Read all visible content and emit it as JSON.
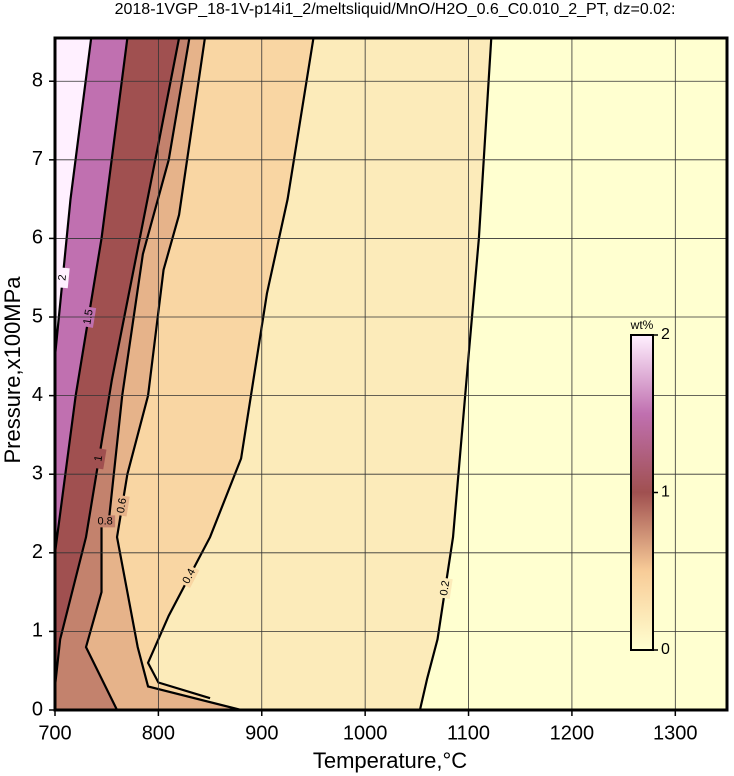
{
  "chart_data": {
    "type": "contour",
    "title": "2018-1VGP_18-1V-p14i1_2/meltsliquid/MnO/H2O_0.6_C0.010_2_PT, dz=0.02:",
    "xlabel": "Temperature,°C",
    "ylabel": "Pressure,x100MPa",
    "xlim": [
      700,
      1350
    ],
    "ylim": [
      0,
      8.55
    ],
    "xticks": [
      700,
      800,
      900,
      1000,
      1100,
      1200,
      1300
    ],
    "yticks": [
      0,
      1,
      2,
      3,
      4,
      5,
      6,
      7,
      8
    ],
    "grid": true,
    "contours": [
      {
        "level": 0.2,
        "x": [
          1053,
          1060,
          1070,
          1085,
          1100,
          1110,
          1122
        ],
        "y": [
          0,
          0.4,
          0.9,
          2.2,
          4.5,
          6,
          8.55
        ]
      },
      {
        "level": 0.4,
        "x": [
          850,
          800,
          790,
          810,
          850,
          880,
          905,
          925,
          950
        ],
        "y": [
          0.15,
          0.35,
          0.6,
          1.2,
          2.2,
          3.2,
          5.3,
          6.5,
          8.55
        ]
      },
      {
        "level": 0.6,
        "x": [
          880,
          790,
          780,
          770,
          760,
          770,
          790,
          805,
          820,
          845
        ],
        "y": [
          0,
          0.3,
          0.8,
          1.5,
          2.2,
          3,
          4,
          5.6,
          6.3,
          8.55
        ]
      },
      {
        "level": 0.8,
        "x": [
          760,
          730,
          745,
          745,
          752,
          765,
          785,
          810,
          830
        ],
        "y": [
          0,
          0.8,
          1.5,
          2.4,
          2.4,
          4,
          5.8,
          7,
          8.55
        ]
      },
      {
        "level": 1,
        "x": [
          700,
          705,
          730,
          755,
          782,
          800,
          820
        ],
        "y": [
          0.3,
          0.9,
          2.2,
          4.2,
          6,
          7.2,
          8.55
        ]
      },
      {
        "level": 1.5,
        "x": [
          700,
          720,
          745,
          770
        ],
        "y": [
          2,
          4,
          6,
          8.55
        ]
      },
      {
        "level": 2,
        "x": [
          700,
          715,
          735
        ],
        "y": [
          4.5,
          6.5,
          8.55
        ]
      }
    ],
    "colorbar": {
      "label": "wt%",
      "lim": [
        0,
        2
      ],
      "ticks": [
        0,
        1,
        2
      ],
      "colors": [
        "#ffffd0",
        "#f8cc98",
        "#a05050",
        "#c070b0",
        "#fff0ff"
      ]
    }
  }
}
